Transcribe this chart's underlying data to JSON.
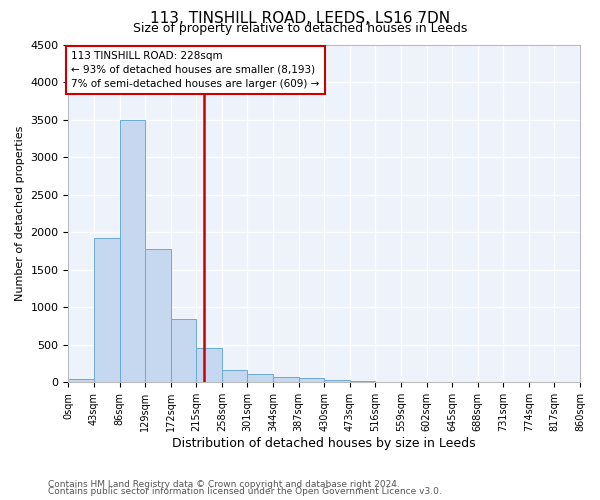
{
  "title1": "113, TINSHILL ROAD, LEEDS, LS16 7DN",
  "title2": "Size of property relative to detached houses in Leeds",
  "xlabel": "Distribution of detached houses by size in Leeds",
  "ylabel": "Number of detached properties",
  "bin_edges": [
    0,
    43,
    86,
    129,
    172,
    215,
    258,
    301,
    344,
    387,
    430,
    473,
    516,
    559,
    602,
    645,
    688,
    731,
    774,
    817,
    860
  ],
  "bar_heights": [
    50,
    1920,
    3500,
    1780,
    850,
    460,
    160,
    110,
    75,
    55,
    30,
    20,
    0,
    0,
    0,
    0,
    0,
    0,
    0,
    0
  ],
  "bar_color": "#c5d8f0",
  "bar_edgecolor": "#6aaad4",
  "vline_x": 228,
  "vline_color": "#cc0000",
  "annotation_line1": "113 TINSHILL ROAD: 228sqm",
  "annotation_line2": "← 93% of detached houses are smaller (8,193)",
  "annotation_line3": "7% of semi-detached houses are larger (609) →",
  "annotation_box_color": "#cc0000",
  "background_color": "#edf2fb",
  "grid_color": "#ffffff",
  "footer1": "Contains HM Land Registry data © Crown copyright and database right 2024.",
  "footer2": "Contains public sector information licensed under the Open Government Licence v3.0.",
  "ylim": [
    0,
    4500
  ],
  "yticks": [
    0,
    500,
    1000,
    1500,
    2000,
    2500,
    3000,
    3500,
    4000,
    4500
  ]
}
